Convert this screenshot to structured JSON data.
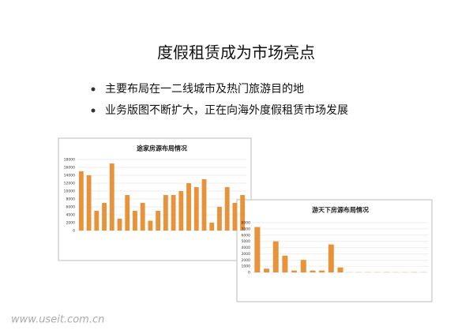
{
  "slide": {
    "title": "度假租赁成为市场亮点",
    "bullets": [
      "主要布局在一二线城市及热门旅游目的地",
      "业务版图不断扩大，正在向海外度假租赁市场发展"
    ],
    "watermark": "www.useit.com.cn"
  },
  "chart_data": [
    {
      "type": "bar",
      "title": "途家房源布局情况",
      "color": "#e8923a",
      "values": [
        15000,
        14000,
        5000,
        7000,
        17000,
        3000,
        9000,
        5000,
        7000,
        2500,
        5000,
        9000,
        9000,
        10000,
        12000,
        11000,
        13000,
        2000,
        6000,
        11000,
        7000,
        9000
      ],
      "ylim": [
        0,
        18000
      ],
      "yticks": [
        0,
        2000,
        4000,
        6000,
        8000,
        10000,
        12000,
        14000,
        16000,
        18000
      ]
    },
    {
      "type": "bar",
      "title": "游天下房源布局情况",
      "color": "#e8923a",
      "values": [
        7300,
        600,
        5000,
        2700,
        300,
        2000,
        300,
        300,
        4500,
        800,
        24,
        30,
        30,
        30,
        40,
        30,
        30,
        40,
        30
      ],
      "ylim": [
        0,
        8000
      ],
      "yticks": [
        0,
        1000,
        2000,
        3000,
        4000,
        5000,
        6000,
        7000,
        8000
      ]
    }
  ]
}
